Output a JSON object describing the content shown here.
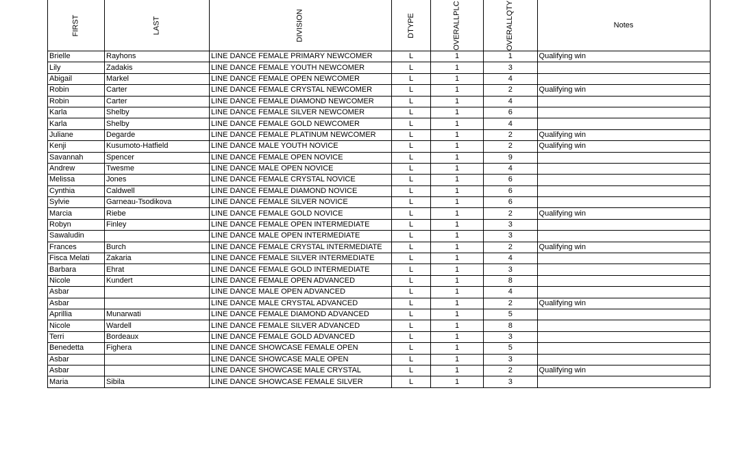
{
  "headers": [
    "FIRST",
    "LAST",
    "DIVISION",
    "DTYPE",
    "OVERALLPLC",
    "OVERALLQTY",
    "Notes"
  ],
  "rows": [
    [
      "Brielle",
      "Rayhons",
      "LINE DANCE FEMALE PRIMARY NEWCOMER",
      "L",
      "1",
      "1",
      "Qualifying win"
    ],
    [
      "Lily",
      "Zadakis",
      "LINE DANCE FEMALE YOUTH NEWCOMER",
      "L",
      "1",
      "3",
      ""
    ],
    [
      "Abigail",
      "Markel",
      "LINE DANCE FEMALE OPEN NEWCOMER",
      "L",
      "1",
      "4",
      ""
    ],
    [
      "Robin",
      "Carter",
      "LINE DANCE FEMALE CRYSTAL NEWCOMER",
      "L",
      "1",
      "2",
      "Qualifying win"
    ],
    [
      "Robin",
      "Carter",
      "LINE DANCE FEMALE DIAMOND NEWCOMER",
      "L",
      "1",
      "4",
      ""
    ],
    [
      "Karla",
      "Shelby",
      "LINE DANCE FEMALE SILVER NEWCOMER",
      "L",
      "1",
      "6",
      ""
    ],
    [
      "Karla",
      "Shelby",
      "LINE DANCE FEMALE GOLD NEWCOMER",
      "L",
      "1",
      "4",
      ""
    ],
    [
      "Juliane",
      "Degarde",
      "LINE DANCE FEMALE PLATINUM NEWCOMER",
      "L",
      "1",
      "2",
      "Qualifying win"
    ],
    [
      "Kenji",
      "Kusumoto-Hatfield",
      "LINE DANCE MALE YOUTH NOVICE",
      "L",
      "1",
      "2",
      "Qualifying win"
    ],
    [
      "Savannah",
      "Spencer",
      "LINE DANCE FEMALE OPEN NOVICE",
      "L",
      "1",
      "9",
      ""
    ],
    [
      "Andrew",
      "Twesme",
      "LINE DANCE MALE OPEN NOVICE",
      "L",
      "1",
      "4",
      ""
    ],
    [
      "Melissa",
      "Jones",
      "LINE DANCE FEMALE CRYSTAL NOVICE",
      "L",
      "1",
      "6",
      ""
    ],
    [
      "Cynthia",
      "Caldwell",
      "LINE DANCE FEMALE DIAMOND NOVICE",
      "L",
      "1",
      "6",
      ""
    ],
    [
      "Sylvie",
      "Garneau-Tsodikova",
      "LINE DANCE FEMALE SILVER NOVICE",
      "L",
      "1",
      "6",
      ""
    ],
    [
      "Marcia",
      "Riebe",
      "LINE DANCE FEMALE GOLD NOVICE",
      "L",
      "1",
      "2",
      "Qualifying win"
    ],
    [
      "Robyn",
      "Finley",
      "LINE DANCE FEMALE OPEN INTERMEDIATE",
      "L",
      "1",
      "3",
      ""
    ],
    [
      "Sawaludin",
      "",
      "LINE DANCE MALE OPEN INTERMEDIATE",
      "L",
      "1",
      "3",
      ""
    ],
    [
      "Frances",
      "Burch",
      "LINE DANCE FEMALE CRYSTAL INTERMEDIATE",
      "L",
      "1",
      "2",
      "Qualifying win"
    ],
    [
      "Fisca Melati",
      "Zakaria",
      "LINE DANCE FEMALE SILVER INTERMEDIATE",
      "L",
      "1",
      "4",
      ""
    ],
    [
      "Barbara",
      "Ehrat",
      "LINE DANCE FEMALE GOLD INTERMEDIATE",
      "L",
      "1",
      "3",
      ""
    ],
    [
      "Nicole",
      "Kundert",
      "LINE DANCE FEMALE OPEN ADVANCED",
      "L",
      "1",
      "8",
      ""
    ],
    [
      "Asbar",
      "",
      "LINE DANCE MALE OPEN ADVANCED",
      "L",
      "1",
      "4",
      ""
    ],
    [
      "Asbar",
      "",
      "LINE DANCE MALE CRYSTAL ADVANCED",
      "L",
      "1",
      "2",
      "Qualifying win"
    ],
    [
      "Aprillia",
      "Munarwati",
      "LINE DANCE FEMALE DIAMOND ADVANCED",
      "L",
      "1",
      "5",
      ""
    ],
    [
      "Nicole",
      "Wardell",
      "LINE DANCE FEMALE SILVER ADVANCED",
      "L",
      "1",
      "8",
      ""
    ],
    [
      "Terri",
      "Bordeaux",
      "LINE DANCE FEMALE GOLD ADVANCED",
      "L",
      "1",
      "3",
      ""
    ],
    [
      "Benedetta",
      "Fighera",
      "LINE DANCE SHOWCASE FEMALE OPEN",
      "L",
      "1",
      "5",
      ""
    ],
    [
      "Asbar",
      "",
      "LINE DANCE SHOWCASE MALE OPEN",
      "L",
      "1",
      "3",
      ""
    ],
    [
      "Asbar",
      "",
      "LINE DANCE SHOWCASE MALE CRYSTAL",
      "L",
      "1",
      "2",
      "Qualifying win"
    ],
    [
      "Maria",
      "Sibila",
      "LINE DANCE SHOWCASE FEMALE SILVER",
      "L",
      "1",
      "3",
      ""
    ]
  ]
}
